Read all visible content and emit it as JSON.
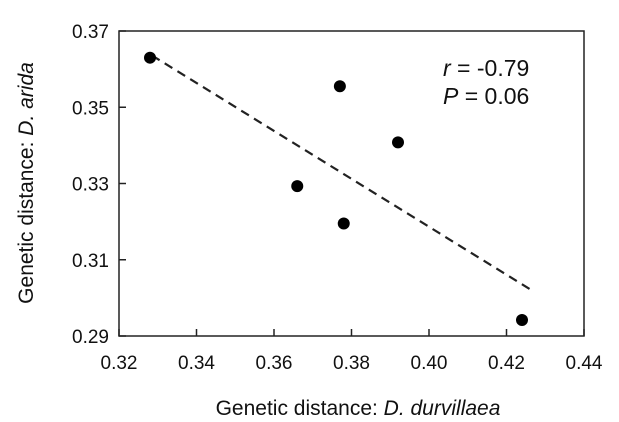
{
  "chart_data": {
    "type": "scatter",
    "x_label": {
      "prefix": "Genetic distance: ",
      "italic": "D. durvillaea"
    },
    "y_label": {
      "prefix": "Genetic distance: ",
      "italic": "D. arida"
    },
    "xlim": [
      0.32,
      0.44
    ],
    "ylim": [
      0.29,
      0.37
    ],
    "xticks": [
      "0.32",
      "0.34",
      "0.36",
      "0.38",
      "0.40",
      "0.42",
      "0.44"
    ],
    "yticks": [
      "0.29",
      "0.31",
      "0.33",
      "0.35",
      "0.37"
    ],
    "points": [
      {
        "x": 0.328,
        "y": 0.363
      },
      {
        "x": 0.377,
        "y": 0.3555
      },
      {
        "x": 0.392,
        "y": 0.3408
      },
      {
        "x": 0.366,
        "y": 0.3293
      },
      {
        "x": 0.378,
        "y": 0.3195
      },
      {
        "x": 0.424,
        "y": 0.2942
      }
    ],
    "trendline": {
      "style": "dashed",
      "x": [
        0.3285,
        0.426
      ],
      "y": [
        0.3636,
        0.3023
      ]
    },
    "annotations": {
      "r_symbol": "r",
      "r_value": " = -0.79",
      "p_symbol": "P",
      "p_value": " = 0.06"
    },
    "grid": false,
    "legend": "none",
    "colors": {
      "points": "#000000",
      "line": "#222222",
      "axes": "#222222"
    }
  }
}
